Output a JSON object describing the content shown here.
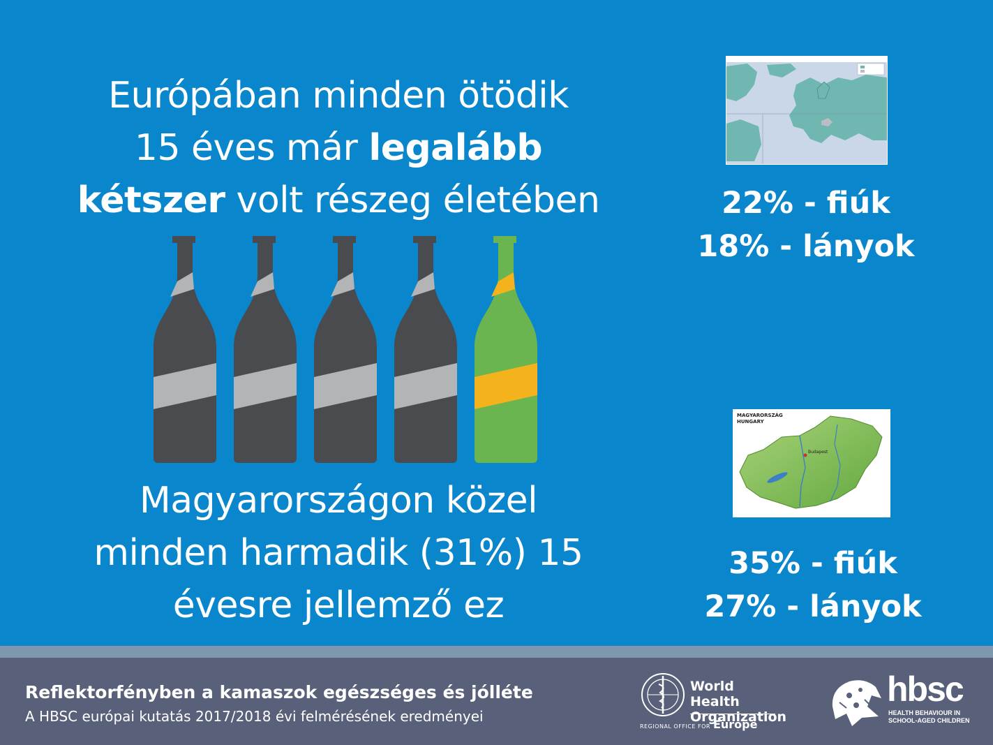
{
  "headline": {
    "part1": "Európában minden ötödik",
    "part2": "15 éves már ",
    "bold1": "legalább",
    "bold2": "kétszer",
    "part3": " volt részeg életében"
  },
  "stats_europe": {
    "boys": "22% - fiúk",
    "girls": "18% - lányok"
  },
  "subhead": {
    "line1": "Magyarországon  közel",
    "line2": "minden harmadik (31%) 15",
    "line3": "évesre jellemző ez"
  },
  "stats_hungary": {
    "boys": "35% - fiúk",
    "girls": "27% - lányok"
  },
  "hungary_map": {
    "title1": "MAGYARORSZÁG",
    "title2": "HUNGARY",
    "city": "Budapest"
  },
  "bottles": {
    "dark_count": 4,
    "highlight_count": 1
  },
  "footer": {
    "title": "Reflektorfényben a kamaszok egészséges és jólléte",
    "subtitle": "A HBSC európai kutatás  2017/2018  évi felmérésének eredményei"
  },
  "who_logo": {
    "line1": "World Health",
    "line2": "Organization",
    "office": "REGIONAL OFFICE FOR",
    "region": "Europe"
  },
  "hbsc_logo": {
    "word": "hbsc",
    "tag1": "HEALTH BEHAVIOUR IN",
    "tag2": "SCHOOL-AGED CHILDREN"
  },
  "colors": {
    "background": "#0a86cc",
    "bottle_dark": "#4a4b4f",
    "label_light": "#b3b4b6",
    "bottle_green": "#6ab550",
    "label_orange": "#f4b31d",
    "footer": "#59617a"
  }
}
